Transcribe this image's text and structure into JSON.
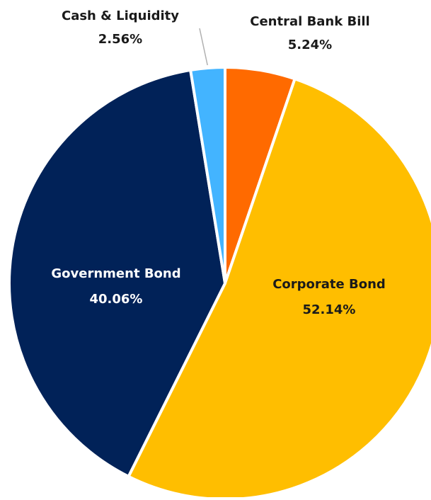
{
  "chart_data": {
    "type": "pie",
    "start_angle_deg": 0,
    "direction": "clockwise",
    "slices": [
      {
        "name": "Central Bank Bill",
        "value": 5.24,
        "label": "5.24%",
        "color": "#FF6A00",
        "label_color": "#1a1a1a",
        "label_placement": "outside"
      },
      {
        "name": "Corporate Bond",
        "value": 52.14,
        "label": "52.14%",
        "color": "#FFBE00",
        "label_color": "#1a1a1a",
        "label_placement": "inside"
      },
      {
        "name": "Government Bond",
        "value": 40.06,
        "label": "40.06%",
        "color": "#012258",
        "label_color": "#ffffff",
        "label_placement": "inside"
      },
      {
        "name": "Cash & Liquidity",
        "value": 2.56,
        "label": "2.56%",
        "color": "#43B4FF",
        "label_color": "#1a1a1a",
        "label_placement": "outside-leader"
      }
    ]
  }
}
